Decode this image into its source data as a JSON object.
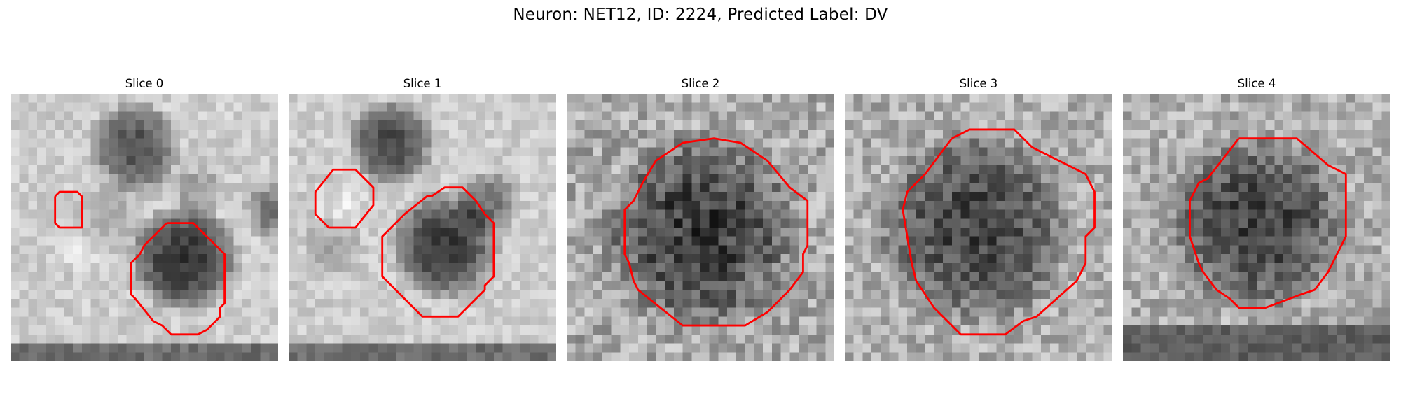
{
  "figure": {
    "title": "Neuron: NET12, ID: 2224, Predicted Label: DV"
  },
  "panels": [
    {
      "title": "Slice 0",
      "contour_color": "#ff0000",
      "grid": 30,
      "base": 205,
      "noise": 22,
      "blobs": [
        {
          "cx": 14,
          "cy": 6,
          "r": 4.2,
          "depth": 125
        },
        {
          "cx": 19.5,
          "cy": 18.5,
          "r": 5.2,
          "depth": 155
        },
        {
          "cx": 21,
          "cy": 11,
          "r": 1.8,
          "depth": 50
        },
        {
          "cx": 29.5,
          "cy": 13,
          "r": 2.2,
          "depth": 90
        },
        {
          "cx": 11,
          "cy": 14,
          "r": 3.5,
          "depth": 30
        }
      ],
      "bright": [
        {
          "cx": 8,
          "cy": 17,
          "r": 3.5,
          "lift": 30
        }
      ],
      "bottom_band": {
        "rows": 2,
        "value": 110
      },
      "contours": [
        [
          [
            5,
            11.5
          ],
          [
            5.5,
            11
          ],
          [
            7.5,
            11
          ],
          [
            8,
            11.5
          ],
          [
            8,
            15
          ],
          [
            7.5,
            15
          ],
          [
            5.5,
            15
          ],
          [
            5,
            14.5
          ],
          [
            5,
            11.5
          ]
        ],
        [
          [
            17.5,
            14.5
          ],
          [
            20.5,
            14.5
          ],
          [
            23,
            17
          ],
          [
            24,
            18
          ],
          [
            24,
            23.5
          ],
          [
            23.5,
            24
          ],
          [
            23.5,
            25
          ],
          [
            23,
            25.5
          ],
          [
            22,
            26.5
          ],
          [
            21,
            27
          ],
          [
            18,
            27
          ],
          [
            17,
            26
          ],
          [
            16,
            25.5
          ],
          [
            14,
            23
          ],
          [
            13.5,
            22.5
          ],
          [
            13.5,
            19
          ],
          [
            14.5,
            18
          ],
          [
            15,
            17
          ],
          [
            17.5,
            14.5
          ]
        ]
      ]
    },
    {
      "title": "Slice 1",
      "contour_color": "#ff0000",
      "grid": 30,
      "base": 205,
      "noise": 22,
      "blobs": [
        {
          "cx": 11.5,
          "cy": 5.5,
          "r": 4.0,
          "depth": 130
        },
        {
          "cx": 17.5,
          "cy": 17,
          "r": 5.2,
          "depth": 150
        },
        {
          "cx": 22.5,
          "cy": 12,
          "r": 2.5,
          "depth": 90
        },
        {
          "cx": 5,
          "cy": 17,
          "r": 2.5,
          "depth": 40
        }
      ],
      "bright": [
        {
          "cx": 6,
          "cy": 13,
          "r": 3.5,
          "lift": 30
        }
      ],
      "bottom_band": {
        "rows": 2,
        "value": 110
      },
      "contours": [
        [
          [
            5,
            8.5
          ],
          [
            7.5,
            8.5
          ],
          [
            9.5,
            10.5
          ],
          [
            9.5,
            12.5
          ],
          [
            7.5,
            15
          ],
          [
            4.5,
            15
          ],
          [
            3,
            13.5
          ],
          [
            3,
            11
          ],
          [
            5,
            8.5
          ]
        ],
        [
          [
            16,
            11.5
          ],
          [
            17.5,
            10.5
          ],
          [
            19.5,
            10.5
          ],
          [
            21,
            12
          ],
          [
            22,
            13.5
          ],
          [
            23,
            14.5
          ],
          [
            23,
            20.5
          ],
          [
            22,
            21.5
          ],
          [
            22,
            22
          ],
          [
            19,
            25
          ],
          [
            17,
            25
          ],
          [
            15,
            25
          ],
          [
            13,
            23
          ],
          [
            10.5,
            20.5
          ],
          [
            10.5,
            16
          ],
          [
            13,
            13.5
          ],
          [
            15.5,
            11.5
          ],
          [
            16,
            11.5
          ]
        ]
      ]
    },
    {
      "title": "Slice 2",
      "contour_color": "#ff0000",
      "grid": 30,
      "base": 170,
      "noise": 46,
      "blobs": [
        {
          "cx": 15,
          "cy": 15.5,
          "r": 10.5,
          "depth": 110
        }
      ],
      "bright": [],
      "bottom_band": null,
      "contours": [
        [
          [
            10,
            7.5
          ],
          [
            13,
            5.5
          ],
          [
            16.5,
            5
          ],
          [
            19.5,
            5.5
          ],
          [
            22.5,
            7.5
          ],
          [
            25,
            10.5
          ],
          [
            27,
            12
          ],
          [
            27,
            17
          ],
          [
            26.5,
            18
          ],
          [
            26.5,
            20
          ],
          [
            25,
            22
          ],
          [
            22.5,
            24.5
          ],
          [
            20,
            26
          ],
          [
            13,
            26
          ],
          [
            8,
            22
          ],
          [
            7.5,
            21
          ],
          [
            7,
            19
          ],
          [
            6.5,
            18
          ],
          [
            6.5,
            13
          ],
          [
            7.5,
            12
          ],
          [
            8.5,
            10
          ],
          [
            10,
            7.5
          ]
        ]
      ]
    },
    {
      "title": "Slice 3",
      "contour_color": "#ff0000",
      "grid": 30,
      "base": 175,
      "noise": 40,
      "blobs": [
        {
          "cx": 14.5,
          "cy": 15,
          "r": 10.5,
          "depth": 105
        }
      ],
      "bright": [],
      "bottom_band": null,
      "contours": [
        [
          [
            12,
            5
          ],
          [
            14,
            4
          ],
          [
            19,
            4
          ],
          [
            21,
            6
          ],
          [
            27,
            9
          ],
          [
            28,
            11
          ],
          [
            28,
            15
          ],
          [
            27,
            16
          ],
          [
            27,
            19
          ],
          [
            26,
            21
          ],
          [
            21.5,
            25
          ],
          [
            20,
            25.5
          ],
          [
            18,
            27
          ],
          [
            13,
            27
          ],
          [
            10,
            24
          ],
          [
            8,
            21
          ],
          [
            7.5,
            19
          ],
          [
            7,
            16
          ],
          [
            6.5,
            13
          ],
          [
            7,
            11
          ],
          [
            9,
            9
          ],
          [
            12,
            5
          ]
        ]
      ]
    },
    {
      "title": "Slice 4",
      "contour_color": "#ff0000",
      "grid": 30,
      "base": 175,
      "noise": 40,
      "blobs": [
        {
          "cx": 15,
          "cy": 14.5,
          "r": 9.5,
          "depth": 110
        }
      ],
      "bright": [],
      "bottom_band": {
        "rows": 4,
        "value": 95
      },
      "contours": [
        [
          [
            13,
            5
          ],
          [
            16,
            5
          ],
          [
            19.5,
            5
          ],
          [
            23,
            8
          ],
          [
            25,
            9
          ],
          [
            25,
            16
          ],
          [
            23,
            20
          ],
          [
            21.5,
            22
          ],
          [
            20,
            22.5
          ],
          [
            16,
            24
          ],
          [
            13,
            24
          ],
          [
            12,
            23
          ],
          [
            10.5,
            22
          ],
          [
            9,
            20
          ],
          [
            8.5,
            19
          ],
          [
            8,
            17.5
          ],
          [
            7.5,
            16
          ],
          [
            7.5,
            12
          ],
          [
            8.5,
            10
          ],
          [
            9.5,
            9.5
          ],
          [
            13,
            5
          ]
        ]
      ]
    }
  ]
}
